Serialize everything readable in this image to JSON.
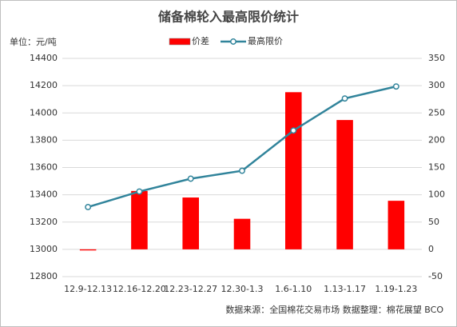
{
  "chart_data": {
    "type": "bar_line",
    "title": "储备棉轮入最高限价统计",
    "unit_label": "单位：元/吨",
    "source": "数据来源：全国棉花交易市场  数据整理：棉花展望 BCO",
    "categories": [
      "12.9-12.13",
      "12.16-12.20",
      "12.23-12.27",
      "12.30-1.3",
      "1.6-1.10",
      "1.13-1.17",
      "1.19-1.23"
    ],
    "series": [
      {
        "name": "价差",
        "type": "bar",
        "color": "#ff0000",
        "axis": "y2",
        "values": [
          -2,
          107,
          95,
          56,
          288,
          237,
          89
        ]
      },
      {
        "name": "最高限价",
        "type": "line",
        "color": "#31849b",
        "axis": "y",
        "values": [
          13310,
          13424,
          13518,
          13576,
          13871,
          14106,
          14194
        ]
      }
    ],
    "ylim": [
      12800,
      14400
    ],
    "yticks": [
      12800,
      13000,
      13200,
      13400,
      13600,
      13800,
      14000,
      14200,
      14400
    ],
    "y2lim": [
      -50,
      350
    ],
    "y2ticks": [
      -50,
      0,
      50,
      100,
      150,
      200,
      250,
      300,
      350
    ],
    "grid": true,
    "legend": "top"
  }
}
